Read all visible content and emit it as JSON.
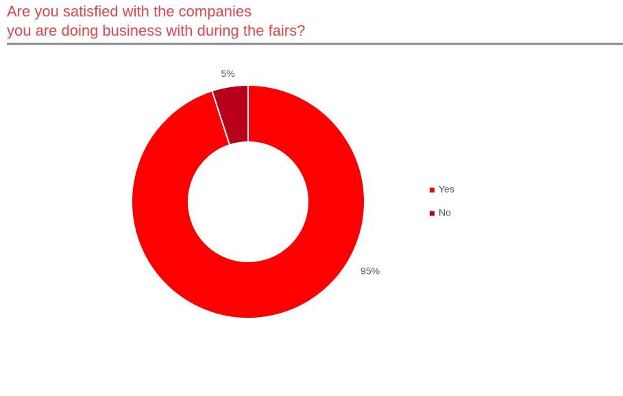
{
  "chart_data": {
    "type": "donut",
    "title": [
      "Are you satisfied with the companies",
      "you are doing business with during the fairs?"
    ],
    "categories": [
      "Yes",
      "No"
    ],
    "values": [
      95,
      5
    ],
    "value_labels": [
      "95%",
      "5%"
    ],
    "colors": [
      "#ff0000",
      "#b8001b"
    ],
    "legend": "right"
  }
}
